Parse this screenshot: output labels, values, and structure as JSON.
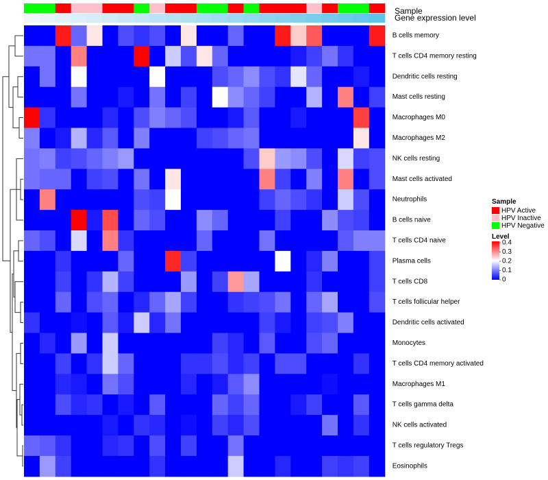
{
  "chart_data": {
    "type": "heatmap",
    "title": "",
    "rows": [
      "B cells memory",
      "T cells CD4 memory resting",
      "Dendritic cells resting",
      "Mast cells resting",
      "Macrophages M0",
      "Macrophages M2",
      "NK cells resting",
      "Mast cells activated",
      "Neutrophils",
      "B cells naive",
      "T cells CD4 naive",
      "Plasma cells",
      "T cells CD8",
      "T cells follicular helper",
      "Dendritic cells activated",
      "Monocytes",
      "T cells CD4 memory activated",
      "Macrophages M1",
      "T cells gamma delta",
      "NK cells activated",
      "T cells regulatory  Tregs",
      "Eosinophils"
    ],
    "n_columns": 23,
    "sample_groups": [
      "Negative",
      "Negative",
      "Active",
      "Inactive",
      "Inactive",
      "Active",
      "Active",
      "Negative",
      "Inactive",
      "Active",
      "Active",
      "Negative",
      "Negative",
      "Active",
      "Negative",
      "Active",
      "Active",
      "Active",
      "Inactive",
      "Active",
      "Negative",
      "Negative",
      "Active"
    ],
    "gene_expression_level": [
      0.05,
      0.08,
      0.11,
      0.14,
      0.17,
      0.2,
      0.23,
      0.26,
      0.29,
      0.32,
      0.35,
      0.38,
      0.41,
      0.44,
      0.47,
      0.5,
      0.53,
      0.56,
      0.59,
      0.62,
      0.65,
      0.68,
      0.72
    ],
    "values": [
      [
        0,
        0,
        0.38,
        0.08,
        0.22,
        0,
        0.06,
        0.04,
        0.06,
        0,
        0.22,
        0,
        0,
        0.08,
        0,
        0,
        0.38,
        0.24,
        0.33,
        0,
        0,
        0,
        0.38
      ],
      [
        0.09,
        0.09,
        0,
        0.3,
        0,
        0,
        0,
        0.4,
        0,
        0.16,
        0.06,
        0.22,
        0.08,
        0,
        0,
        0,
        0,
        0.02,
        0.05,
        0.09,
        0.04,
        0,
        0
      ],
      [
        0,
        0.09,
        0,
        0.2,
        0,
        0,
        0,
        0,
        0.2,
        0,
        0,
        0,
        0.06,
        0.08,
        0.11,
        0.06,
        0.04,
        0.18,
        0.08,
        0,
        0,
        0.02,
        0
      ],
      [
        0,
        0,
        0,
        0.09,
        0,
        0,
        0.02,
        0,
        0.09,
        0,
        0.05,
        0,
        0.2,
        0.11,
        0.08,
        0.05,
        0,
        0,
        0.14,
        0,
        0.3,
        0,
        0.05
      ],
      [
        0.4,
        0.04,
        0,
        0,
        0,
        0.03,
        0,
        0.06,
        0.1,
        0.08,
        0.06,
        0,
        0,
        0.02,
        0.07,
        0,
        0,
        0.02,
        0,
        0,
        0,
        0.35,
        0
      ],
      [
        0.1,
        0,
        0.02,
        0.14,
        0.03,
        0.07,
        0,
        0.1,
        0,
        0,
        0,
        0.05,
        0.06,
        0.08,
        0.09,
        0,
        0,
        0,
        0,
        0,
        0,
        0.22,
        0
      ],
      [
        0.09,
        0.1,
        0.05,
        0.06,
        0.08,
        0.1,
        0.12,
        0,
        0,
        0,
        0,
        0,
        0,
        0,
        0.06,
        0.24,
        0.12,
        0.11,
        0.06,
        0,
        0.17,
        0.05,
        0.06
      ],
      [
        0.09,
        0.08,
        0.08,
        0,
        0.05,
        0.06,
        0,
        0.09,
        0,
        0.22,
        0,
        0,
        0,
        0,
        0,
        0.3,
        0.05,
        0,
        0.1,
        0,
        0.3,
        0,
        0.06
      ],
      [
        0,
        0.3,
        0,
        0,
        0,
        0,
        0,
        0.06,
        0.05,
        0.2,
        0,
        0,
        0,
        0,
        0,
        0.05,
        0.08,
        0.06,
        0.04,
        0,
        0.16,
        0.06,
        0
      ],
      [
        0,
        0,
        0,
        0.4,
        0.02,
        0.34,
        0,
        0.08,
        0.06,
        0,
        0,
        0.11,
        0.08,
        0,
        0,
        0,
        0.05,
        0,
        0,
        0.11,
        0.06,
        0.05,
        0
      ],
      [
        0.08,
        0.06,
        0,
        0.17,
        0,
        0.3,
        0.04,
        0,
        0,
        0,
        0,
        0.08,
        0,
        0,
        0,
        0.09,
        0,
        0,
        0,
        0,
        0.07,
        0.1,
        0.1
      ],
      [
        0,
        0,
        0.04,
        0,
        0,
        0,
        0.08,
        0,
        0,
        0.37,
        0.05,
        0,
        0,
        0,
        0,
        0,
        0.2,
        0,
        0.03,
        0.1,
        0,
        0,
        0.05
      ],
      [
        0,
        0,
        0.05,
        0,
        0.04,
        0.14,
        0.05,
        0,
        0,
        0,
        0.12,
        0,
        0.05,
        0.28,
        0.13,
        0,
        0,
        0,
        0.04,
        0,
        0,
        0,
        0.05
      ],
      [
        0,
        0,
        0.08,
        0,
        0.06,
        0.08,
        0,
        0.03,
        0.08,
        0.13,
        0.05,
        0,
        0,
        0.04,
        0.05,
        0.06,
        0.09,
        0,
        0.08,
        0.13,
        0,
        0,
        0.06
      ],
      [
        0.04,
        0,
        0,
        0.01,
        0,
        0.07,
        0.02,
        0.16,
        0.03,
        0.09,
        0,
        0,
        0,
        0,
        0,
        0.05,
        0.02,
        0,
        0.05,
        0.06,
        0.1,
        0,
        0
      ],
      [
        0,
        0.03,
        0,
        0.12,
        0,
        0.16,
        0,
        0,
        0,
        0,
        0,
        0,
        0.05,
        0.03,
        0,
        0.07,
        0,
        0,
        0.06,
        0.08,
        0,
        0,
        0
      ],
      [
        0,
        0,
        0.05,
        0,
        0.04,
        0.16,
        0.08,
        0,
        0,
        0,
        0.04,
        0.04,
        0.06,
        0.03,
        0.05,
        0,
        0.06,
        0.06,
        0,
        0,
        0,
        0.04,
        0
      ],
      [
        0,
        0,
        0.03,
        0.02,
        0,
        0.09,
        0.06,
        0,
        0,
        0,
        0.03,
        0,
        0.02,
        0.07,
        0.11,
        0,
        0,
        0,
        0,
        0.01,
        0,
        0,
        0
      ],
      [
        0,
        0,
        0.06,
        0.03,
        0.04,
        0,
        0.02,
        0,
        0.07,
        0,
        0,
        0,
        0.08,
        0.05,
        0.08,
        0,
        0,
        0.02,
        0.05,
        0,
        0,
        0.07,
        0
      ],
      [
        0,
        0,
        0,
        0,
        0,
        0.02,
        0,
        0.04,
        0.03,
        0,
        0.01,
        0,
        0.05,
        0.03,
        0.06,
        0,
        0,
        0,
        0,
        0.09,
        0,
        0.04,
        0
      ],
      [
        0.08,
        0.07,
        0.04,
        0,
        0,
        0.03,
        0.04,
        0,
        0.06,
        0,
        0.05,
        0,
        0,
        0.09,
        0,
        0,
        0,
        0,
        0,
        0,
        0,
        0,
        0
      ],
      [
        0,
        0.12,
        0.05,
        0,
        0,
        0,
        0,
        0,
        0.04,
        0,
        0,
        0,
        0,
        0.16,
        0,
        0,
        0.03,
        0,
        0,
        0.05,
        0.04,
        0.05,
        0
      ]
    ],
    "color_scale": {
      "min": 0,
      "max": 0.4,
      "low": "#0000ff",
      "mid": "#ffffff",
      "high": "#ff0000"
    }
  },
  "annotations": {
    "sample_label": "Sample",
    "gene_label": "Gene expression level"
  },
  "legend": {
    "sample_title": "Sample",
    "sample_items": [
      {
        "label": "HPV Active",
        "color": "#ff0000"
      },
      {
        "label": "HPV Inactive",
        "color": "#ffc0cb"
      },
      {
        "label": "HPV Negative",
        "color": "#00ff00"
      }
    ],
    "level_title": "Level",
    "level_ticks": [
      "0.4",
      "0.3",
      "0.2",
      "0.1",
      "0"
    ]
  },
  "colors": {
    "gene_bar_low": "#eef6fb",
    "gene_bar_high": "#5ec4ea",
    "group_active": "#ff0000",
    "group_inactive": "#ffc0cb",
    "group_negative": "#00ff00"
  }
}
